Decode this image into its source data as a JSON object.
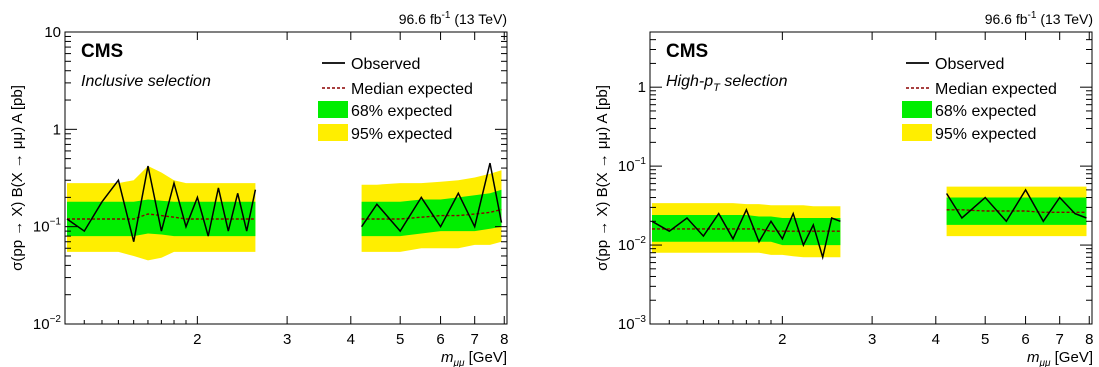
{
  "colors": {
    "band68": "#00ee00",
    "band95": "#ffee00",
    "observed": "#000000",
    "expected": "#8b0000"
  },
  "panels": [
    {
      "cms": "CMS",
      "selection_main": "Inclusive selection",
      "selection_sub": "",
      "selection_after": "",
      "lumi_value": "96.6 fb",
      "lumi_exp": "-1",
      "lumi_energy": " (13 TeV)",
      "ylabel": "σ(pp → X) B(X → μμ) A [pb]",
      "xlabel_m": "m",
      "xlabel_sub": "μμ",
      "xlabel_unit": " [GeV]",
      "legend": {
        "observed": "Observed",
        "median": "Median expected",
        "b68": "68% expected",
        "b95": "95% expected"
      },
      "xticks": [
        {
          "v": 2,
          "label": "2"
        },
        {
          "v": 3,
          "label": "3"
        },
        {
          "v": 4,
          "label": "4"
        },
        {
          "v": 5,
          "label": "5"
        },
        {
          "v": 6,
          "label": "6"
        },
        {
          "v": 7,
          "label": "7"
        },
        {
          "v": 8,
          "label": "8"
        }
      ],
      "yticks": [
        {
          "v": 10,
          "base": "10",
          "exp": ""
        },
        {
          "v": 1,
          "base": "1",
          "exp": ""
        },
        {
          "v": 0.1,
          "base": "10",
          "exp": "−1"
        },
        {
          "v": 0.01,
          "base": "10",
          "exp": "−2"
        }
      ]
    },
    {
      "cms": "CMS",
      "selection_main": "High-p",
      "selection_sub": "T",
      "selection_after": " selection",
      "lumi_value": "96.6 fb",
      "lumi_exp": "-1",
      "lumi_energy": " (13 TeV)",
      "ylabel": "σ(pp → X) B(X → μμ) A [pb]",
      "xlabel_m": "m",
      "xlabel_sub": "μμ",
      "xlabel_unit": " [GeV]",
      "legend": {
        "observed": "Observed",
        "median": "Median expected",
        "b68": "68% expected",
        "b95": "95% expected"
      },
      "xticks": [
        {
          "v": 2,
          "label": "2"
        },
        {
          "v": 3,
          "label": "3"
        },
        {
          "v": 4,
          "label": "4"
        },
        {
          "v": 5,
          "label": "5"
        },
        {
          "v": 6,
          "label": "6"
        },
        {
          "v": 7,
          "label": "7"
        },
        {
          "v": 8,
          "label": "8"
        }
      ],
      "yticks": [
        {
          "v": 1,
          "base": "1",
          "exp": ""
        },
        {
          "v": 0.1,
          "base": "10",
          "exp": "−1"
        },
        {
          "v": 0.01,
          "base": "10",
          "exp": "−2"
        },
        {
          "v": 0.001,
          "base": "10",
          "exp": "−3"
        }
      ]
    }
  ],
  "chart_data": [
    {
      "type": "line",
      "x_scale": "log",
      "y_scale": "log",
      "xlim": [
        1.1,
        8.1
      ],
      "ylim": [
        0.01,
        10
      ],
      "legend_position": "top-right",
      "segments": [
        {
          "x": [
            1.11,
            1.2,
            1.3,
            1.4,
            1.5,
            1.6,
            1.7,
            1.8,
            1.9,
            2.0,
            2.1,
            2.2,
            2.3,
            2.4,
            2.5,
            2.6
          ],
          "observed": [
            0.12,
            0.09,
            0.18,
            0.3,
            0.07,
            0.42,
            0.09,
            0.28,
            0.1,
            0.2,
            0.08,
            0.25,
            0.09,
            0.22,
            0.09,
            0.24
          ],
          "median": [
            0.12,
            0.12,
            0.12,
            0.12,
            0.12,
            0.135,
            0.13,
            0.125,
            0.12,
            0.12,
            0.12,
            0.12,
            0.12,
            0.12,
            0.12,
            0.12
          ],
          "band68": [
            [
              0.08,
              0.18
            ],
            [
              0.08,
              0.18
            ],
            [
              0.08,
              0.18
            ],
            [
              0.08,
              0.18
            ],
            [
              0.08,
              0.18
            ],
            [
              0.085,
              0.19
            ],
            [
              0.083,
              0.185
            ],
            [
              0.08,
              0.18
            ],
            [
              0.08,
              0.18
            ],
            [
              0.08,
              0.18
            ],
            [
              0.08,
              0.18
            ],
            [
              0.08,
              0.18
            ],
            [
              0.08,
              0.18
            ],
            [
              0.08,
              0.18
            ],
            [
              0.08,
              0.18
            ],
            [
              0.08,
              0.18
            ]
          ],
          "band95": [
            [
              0.055,
              0.28
            ],
            [
              0.055,
              0.28
            ],
            [
              0.055,
              0.28
            ],
            [
              0.055,
              0.28
            ],
            [
              0.05,
              0.3
            ],
            [
              0.045,
              0.42
            ],
            [
              0.048,
              0.36
            ],
            [
              0.055,
              0.3
            ],
            [
              0.055,
              0.28
            ],
            [
              0.055,
              0.28
            ],
            [
              0.055,
              0.28
            ],
            [
              0.055,
              0.28
            ],
            [
              0.055,
              0.28
            ],
            [
              0.055,
              0.28
            ],
            [
              0.055,
              0.28
            ],
            [
              0.055,
              0.28
            ]
          ]
        },
        {
          "x": [
            4.2,
            4.5,
            5.0,
            5.5,
            6.0,
            6.5,
            7.0,
            7.5,
            7.9
          ],
          "observed": [
            0.1,
            0.17,
            0.09,
            0.2,
            0.1,
            0.22,
            0.1,
            0.45,
            0.11
          ],
          "median": [
            0.12,
            0.12,
            0.12,
            0.125,
            0.13,
            0.13,
            0.135,
            0.14,
            0.15
          ],
          "band68": [
            [
              0.08,
              0.18
            ],
            [
              0.08,
              0.18
            ],
            [
              0.08,
              0.18
            ],
            [
              0.085,
              0.19
            ],
            [
              0.09,
              0.19
            ],
            [
              0.09,
              0.2
            ],
            [
              0.09,
              0.21
            ],
            [
              0.095,
              0.22
            ],
            [
              0.1,
              0.24
            ]
          ],
          "band95": [
            [
              0.055,
              0.27
            ],
            [
              0.055,
              0.27
            ],
            [
              0.055,
              0.28
            ],
            [
              0.06,
              0.28
            ],
            [
              0.06,
              0.29
            ],
            [
              0.06,
              0.3
            ],
            [
              0.065,
              0.32
            ],
            [
              0.065,
              0.35
            ],
            [
              0.07,
              0.38
            ]
          ]
        }
      ]
    },
    {
      "type": "line",
      "x_scale": "log",
      "y_scale": "log",
      "xlim": [
        1.1,
        8.1
      ],
      "ylim": [
        0.001,
        5
      ],
      "legend_position": "top-right",
      "segments": [
        {
          "x": [
            1.11,
            1.2,
            1.3,
            1.4,
            1.5,
            1.6,
            1.7,
            1.8,
            1.9,
            2.0,
            2.1,
            2.2,
            2.3,
            2.4,
            2.5,
            2.6
          ],
          "observed": [
            0.02,
            0.015,
            0.022,
            0.013,
            0.025,
            0.012,
            0.028,
            0.011,
            0.02,
            0.012,
            0.025,
            0.01,
            0.018,
            0.007,
            0.022,
            0.02
          ],
          "median": [
            0.016,
            0.016,
            0.016,
            0.016,
            0.016,
            0.016,
            0.016,
            0.016,
            0.015,
            0.015,
            0.015,
            0.015,
            0.015,
            0.015,
            0.015,
            0.015
          ],
          "band68": [
            [
              0.011,
              0.024
            ],
            [
              0.011,
              0.024
            ],
            [
              0.011,
              0.024
            ],
            [
              0.011,
              0.024
            ],
            [
              0.011,
              0.024
            ],
            [
              0.011,
              0.024
            ],
            [
              0.011,
              0.024
            ],
            [
              0.011,
              0.023
            ],
            [
              0.011,
              0.023
            ],
            [
              0.01,
              0.022
            ],
            [
              0.01,
              0.022
            ],
            [
              0.01,
              0.022
            ],
            [
              0.01,
              0.022
            ],
            [
              0.01,
              0.022
            ],
            [
              0.01,
              0.022
            ],
            [
              0.01,
              0.022
            ]
          ],
          "band95": [
            [
              0.008,
              0.034
            ],
            [
              0.008,
              0.034
            ],
            [
              0.008,
              0.034
            ],
            [
              0.008,
              0.034
            ],
            [
              0.008,
              0.034
            ],
            [
              0.008,
              0.034
            ],
            [
              0.008,
              0.033
            ],
            [
              0.008,
              0.033
            ],
            [
              0.0075,
              0.032
            ],
            [
              0.0075,
              0.032
            ],
            [
              0.0072,
              0.032
            ],
            [
              0.007,
              0.032
            ],
            [
              0.007,
              0.031
            ],
            [
              0.007,
              0.031
            ],
            [
              0.007,
              0.031
            ],
            [
              0.007,
              0.031
            ]
          ]
        },
        {
          "x": [
            4.2,
            4.5,
            5.0,
            5.5,
            6.0,
            6.5,
            7.0,
            7.5,
            7.9
          ],
          "observed": [
            0.045,
            0.022,
            0.04,
            0.02,
            0.05,
            0.02,
            0.04,
            0.025,
            0.022
          ],
          "median": [
            0.028,
            0.028,
            0.027,
            0.027,
            0.027,
            0.026,
            0.026,
            0.026,
            0.026
          ],
          "band68": [
            [
              0.018,
              0.04
            ],
            [
              0.018,
              0.04
            ],
            [
              0.018,
              0.04
            ],
            [
              0.018,
              0.04
            ],
            [
              0.018,
              0.04
            ],
            [
              0.018,
              0.04
            ],
            [
              0.018,
              0.04
            ],
            [
              0.018,
              0.04
            ],
            [
              0.018,
              0.04
            ]
          ],
          "band95": [
            [
              0.013,
              0.055
            ],
            [
              0.013,
              0.055
            ],
            [
              0.013,
              0.055
            ],
            [
              0.013,
              0.055
            ],
            [
              0.013,
              0.055
            ],
            [
              0.013,
              0.055
            ],
            [
              0.013,
              0.055
            ],
            [
              0.013,
              0.055
            ],
            [
              0.013,
              0.055
            ]
          ]
        }
      ]
    }
  ]
}
